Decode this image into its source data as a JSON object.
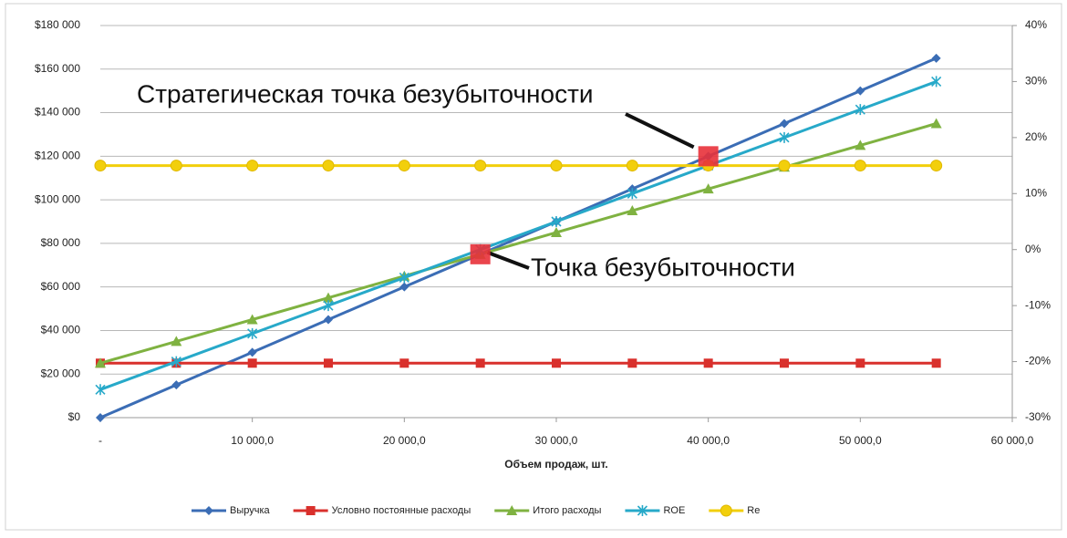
{
  "chart_data": {
    "type": "line",
    "x_label": "Объем продаж, шт.",
    "x": [
      0,
      5000,
      10000,
      15000,
      20000,
      25000,
      30000,
      35000,
      40000,
      45000,
      50000,
      55000
    ],
    "xlim": [
      0,
      60000
    ],
    "xticks": [
      {
        "value": 0,
        "label": "-"
      },
      {
        "value": 10000,
        "label": "10 000,0"
      },
      {
        "value": 20000,
        "label": "20 000,0"
      },
      {
        "value": 30000,
        "label": "30 000,0"
      },
      {
        "value": 40000,
        "label": "40 000,0"
      },
      {
        "value": 50000,
        "label": "50 000,0"
      },
      {
        "value": 60000,
        "label": "60 000,0"
      }
    ],
    "ylim": [
      0,
      180000
    ],
    "yticks": [
      {
        "value": 0,
        "label": "$0"
      },
      {
        "value": 20000,
        "label": "$20 000"
      },
      {
        "value": 40000,
        "label": "$40 000"
      },
      {
        "value": 60000,
        "label": "$60 000"
      },
      {
        "value": 80000,
        "label": "$80 000"
      },
      {
        "value": 100000,
        "label": "$100 000"
      },
      {
        "value": 120000,
        "label": "$120 000"
      },
      {
        "value": 140000,
        "label": "$140 000"
      },
      {
        "value": 160000,
        "label": "$160 000"
      },
      {
        "value": 180000,
        "label": "$180 000"
      }
    ],
    "y2lim": [
      -30,
      40
    ],
    "y2ticks": [
      {
        "value": -30,
        "label": "-30%"
      },
      {
        "value": -20,
        "label": "-20%"
      },
      {
        "value": -10,
        "label": "-10%"
      },
      {
        "value": 0,
        "label": "0%"
      },
      {
        "value": 10,
        "label": "10%"
      },
      {
        "value": 20,
        "label": "20%"
      },
      {
        "value": 30,
        "label": "30%"
      },
      {
        "value": 40,
        "label": "40%"
      }
    ],
    "grid": true,
    "legend": "bottom",
    "series": [
      {
        "name": "Выручка",
        "color": "#3b6db5",
        "marker": "diamond",
        "values": [
          0,
          15000,
          30000,
          45000,
          60000,
          75000,
          90000,
          105000,
          120000,
          135000,
          150000,
          165000
        ]
      },
      {
        "name": "Условно постоянные расходы",
        "color": "#d9302c",
        "marker": "square",
        "values": [
          25000,
          25000,
          25000,
          25000,
          25000,
          25000,
          25000,
          25000,
          25000,
          25000,
          25000,
          25000
        ]
      },
      {
        "name": "Итого расходы",
        "color": "#7fb241",
        "marker": "triangle",
        "values": [
          25000,
          35000,
          45000,
          55000,
          65000,
          75000,
          85000,
          95000,
          105000,
          115000,
          125000,
          135000
        ]
      },
      {
        "name": "ROE",
        "color": "#27a9c9",
        "marker": "star",
        "axis": "y2",
        "values": [
          -25,
          -20,
          -15,
          -10,
          -5,
          0,
          5,
          10,
          15,
          20,
          25,
          30
        ]
      },
      {
        "name": "Re",
        "color": "#f2cf0c",
        "marker": "circle",
        "axis": "y2",
        "values": [
          15,
          15,
          15,
          15,
          15,
          15,
          15,
          15,
          15,
          15,
          15,
          15
        ]
      }
    ],
    "annotations": [
      {
        "text": "Стратегическая точка безубыточности",
        "x": 40000,
        "y": 120000
      },
      {
        "text": "Точка безубыточности",
        "x": 25000,
        "y": 75000
      }
    ]
  }
}
